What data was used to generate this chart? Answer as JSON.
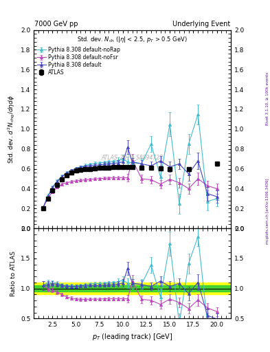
{
  "title_left": "7000 GeV pp",
  "title_right": "Underlying Event",
  "annotation": "Std. dev. $N_{\\rm ch}$ ($|\\eta|$ < 2.5, $p_T$ > 0.5 GeV)",
  "watermark": "ATLAS_2010_S8894728",
  "ylabel_main": "Std. dev. $d^2N_{\\rm chg}/d\\eta d\\phi$",
  "ylabel_ratio": "Ratio to ATLAS",
  "xlabel": "$p_T$ (leading track) [GeV]",
  "right_label_bottom": "mcplots.cern.ch [arXiv:1306.3436]",
  "right_label_top": "Rivet 3.1.10, ≥ 100k events",
  "atlas_x": [
    1.5,
    2.0,
    2.5,
    3.0,
    3.5,
    4.0,
    4.5,
    5.0,
    5.5,
    6.0,
    6.5,
    7.0,
    7.5,
    8.0,
    8.5,
    9.0,
    9.5,
    10.0,
    10.5,
    11.0,
    12.0,
    13.0,
    14.0,
    15.0,
    17.0,
    20.0
  ],
  "atlas_y": [
    0.2,
    0.3,
    0.38,
    0.44,
    0.495,
    0.535,
    0.56,
    0.58,
    0.59,
    0.598,
    0.6,
    0.605,
    0.61,
    0.61,
    0.612,
    0.615,
    0.615,
    0.615,
    0.615,
    0.615,
    0.61,
    0.61,
    0.605,
    0.6,
    0.6,
    0.65
  ],
  "atlas_yerr": [
    0.01,
    0.01,
    0.01,
    0.01,
    0.01,
    0.01,
    0.01,
    0.01,
    0.01,
    0.01,
    0.01,
    0.01,
    0.01,
    0.01,
    0.01,
    0.01,
    0.01,
    0.01,
    0.01,
    0.01,
    0.01,
    0.01,
    0.01,
    0.01,
    0.01,
    0.015
  ],
  "py_default_x": [
    1.5,
    2.0,
    2.5,
    3.0,
    3.5,
    4.0,
    4.5,
    5.0,
    5.5,
    6.0,
    6.5,
    7.0,
    7.5,
    8.0,
    8.5,
    9.0,
    9.5,
    10.0,
    10.5,
    11.0,
    12.0,
    13.0,
    14.0,
    15.0,
    16.0,
    17.0,
    18.0,
    19.0,
    20.0
  ],
  "py_default_y": [
    0.21,
    0.32,
    0.41,
    0.47,
    0.52,
    0.555,
    0.58,
    0.6,
    0.615,
    0.625,
    0.63,
    0.635,
    0.64,
    0.645,
    0.65,
    0.655,
    0.66,
    0.67,
    0.82,
    0.67,
    0.65,
    0.63,
    0.68,
    0.62,
    0.65,
    0.55,
    0.68,
    0.35,
    0.32
  ],
  "py_default_yerr": [
    0.015,
    0.015,
    0.015,
    0.015,
    0.015,
    0.015,
    0.015,
    0.015,
    0.015,
    0.015,
    0.015,
    0.015,
    0.015,
    0.02,
    0.02,
    0.02,
    0.03,
    0.04,
    0.07,
    0.04,
    0.04,
    0.04,
    0.05,
    0.05,
    0.05,
    0.07,
    0.08,
    0.07,
    0.06
  ],
  "py_default_color": "#4444bb",
  "py_nofsr_x": [
    1.5,
    2.0,
    2.5,
    3.0,
    3.5,
    4.0,
    4.5,
    5.0,
    5.5,
    6.0,
    6.5,
    7.0,
    7.5,
    8.0,
    8.5,
    9.0,
    9.5,
    10.0,
    10.5,
    11.0,
    12.0,
    13.0,
    14.0,
    15.0,
    16.0,
    17.0,
    18.0,
    19.0,
    20.0
  ],
  "py_nofsr_y": [
    0.21,
    0.3,
    0.37,
    0.415,
    0.445,
    0.46,
    0.47,
    0.478,
    0.484,
    0.49,
    0.494,
    0.498,
    0.502,
    0.505,
    0.507,
    0.51,
    0.51,
    0.51,
    0.51,
    0.69,
    0.5,
    0.49,
    0.445,
    0.495,
    0.46,
    0.4,
    0.5,
    0.43,
    0.4
  ],
  "py_nofsr_yerr": [
    0.015,
    0.015,
    0.015,
    0.015,
    0.015,
    0.015,
    0.015,
    0.015,
    0.015,
    0.015,
    0.015,
    0.015,
    0.015,
    0.015,
    0.015,
    0.015,
    0.015,
    0.015,
    0.04,
    0.06,
    0.04,
    0.04,
    0.04,
    0.05,
    0.05,
    0.05,
    0.06,
    0.05,
    0.05
  ],
  "py_nofsr_color": "#bb44bb",
  "py_norap_x": [
    1.5,
    2.0,
    2.5,
    3.0,
    3.5,
    4.0,
    4.5,
    5.0,
    5.5,
    6.0,
    6.5,
    7.0,
    7.5,
    8.0,
    8.5,
    9.0,
    9.5,
    10.0,
    10.5,
    11.0,
    12.0,
    13.0,
    14.0,
    15.0,
    16.0,
    17.0,
    18.0,
    19.0,
    20.0
  ],
  "py_norap_y": [
    0.21,
    0.33,
    0.415,
    0.48,
    0.525,
    0.56,
    0.585,
    0.605,
    0.62,
    0.635,
    0.645,
    0.655,
    0.66,
    0.665,
    0.67,
    0.675,
    0.685,
    0.7,
    0.67,
    0.66,
    0.655,
    0.85,
    0.52,
    1.05,
    0.25,
    0.85,
    1.15,
    0.27,
    0.3
  ],
  "py_norap_yerr": [
    0.015,
    0.015,
    0.015,
    0.015,
    0.015,
    0.015,
    0.015,
    0.015,
    0.015,
    0.015,
    0.015,
    0.015,
    0.015,
    0.015,
    0.015,
    0.015,
    0.03,
    0.04,
    0.05,
    0.05,
    0.05,
    0.08,
    0.08,
    0.12,
    0.1,
    0.1,
    0.1,
    0.09,
    0.08
  ],
  "py_norap_color": "#44bbcc",
  "ylim_main": [
    0.0,
    2.0
  ],
  "ylim_ratio": [
    0.5,
    2.0
  ],
  "xlim": [
    0.5,
    21.5
  ],
  "band_yellow": [
    0.9,
    1.1
  ],
  "band_green": [
    0.95,
    1.05
  ],
  "yticks_main": [
    0.0,
    0.2,
    0.4,
    0.6,
    0.8,
    1.0,
    1.2,
    1.4,
    1.6,
    1.8,
    2.0
  ],
  "yticks_ratio": [
    0.5,
    1.0,
    1.5,
    2.0
  ]
}
